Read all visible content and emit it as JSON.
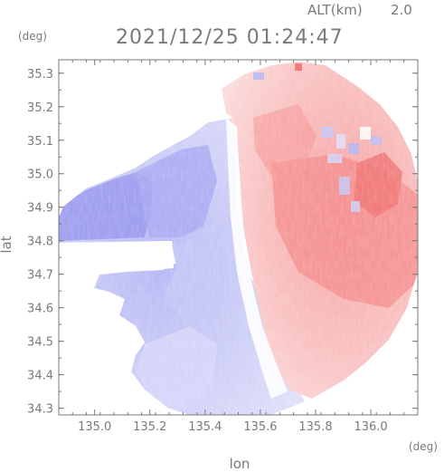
{
  "chart_data": {
    "type": "heatmap",
    "alt_label": "ALT(km)",
    "alt_value": "2.0",
    "title": "2021/12/25 01:24:47",
    "xlabel": "lon",
    "ylabel": "lat",
    "x_unit": "(deg)",
    "y_unit": "(deg)",
    "xlim": [
      134.87,
      136.17
    ],
    "ylim": [
      34.28,
      35.34
    ],
    "xticks": [
      135.0,
      135.2,
      135.4,
      135.6,
      135.8,
      136.0
    ],
    "xtick_labels": [
      "135.0",
      "135.2",
      "135.4",
      "135.6",
      "135.8",
      "136.0"
    ],
    "yticks": [
      34.3,
      34.4,
      34.5,
      34.6,
      34.7,
      34.8,
      34.9,
      35.0,
      35.1,
      35.2,
      35.3
    ],
    "ytick_labels": [
      "34.3",
      "34.4",
      "34.5",
      "34.6",
      "34.7",
      "34.8",
      "34.9",
      "35.0",
      "35.1",
      "35.2",
      "35.3"
    ],
    "grid": false,
    "legend": "none",
    "colors": {
      "positive": "#f58a8a",
      "negative": "#8c8cf0",
      "neutral": "#ffffff",
      "frame": "#7a7a7a"
    }
  }
}
